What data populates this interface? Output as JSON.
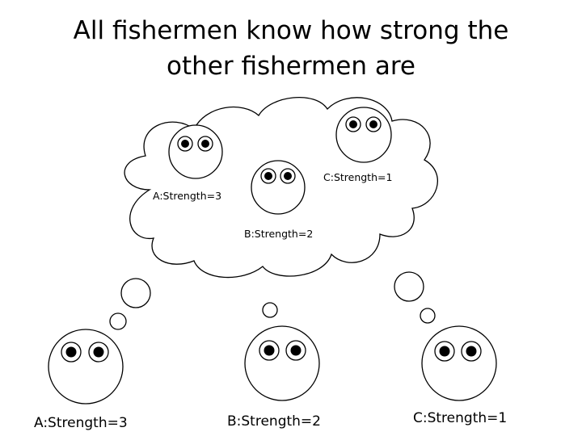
{
  "title": {
    "line1": "All fishermen know how strong the",
    "line2": "other fishermen are"
  },
  "cloud": {
    "fishermen": [
      {
        "label": "A:Strength=3"
      },
      {
        "label": "B:Strength=2"
      },
      {
        "label": "C:Strength=1"
      }
    ]
  },
  "fishermen": [
    {
      "label": "A:Strength=3"
    },
    {
      "label": "B:Strength=2"
    },
    {
      "label": "C:Strength=1"
    }
  ]
}
